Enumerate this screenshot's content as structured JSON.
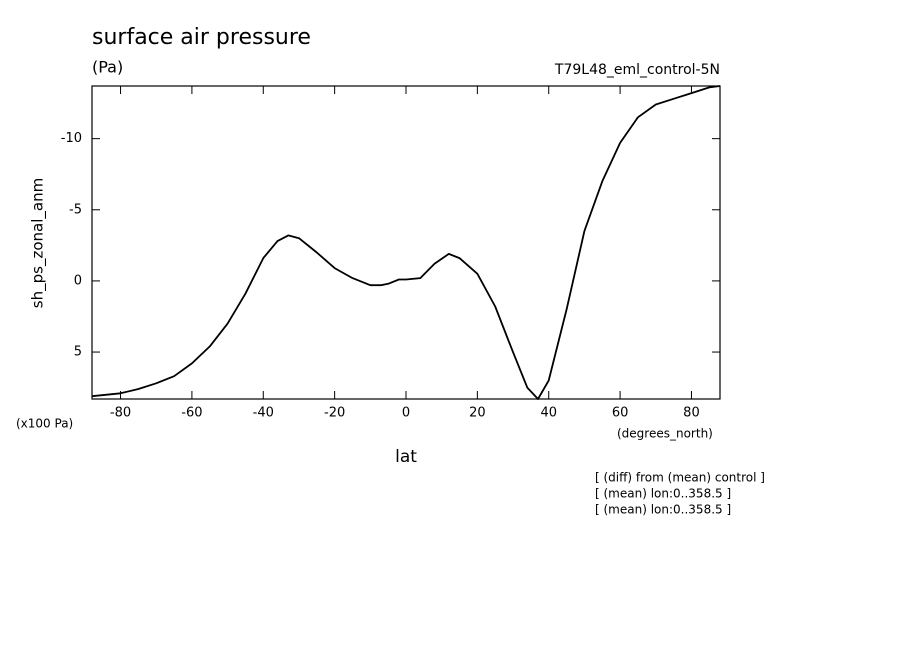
{
  "chart_data": {
    "type": "line",
    "title": "surface air pressure",
    "units": "(Pa)",
    "experiment": "T79L48_eml_control-5N",
    "y_label": "sh_ps_zonal_anm",
    "y_scale_note": "(x100 Pa)",
    "x_label": "lat",
    "x_units": "(degrees_north)",
    "notes": [
      "[ (diff) from (mean) control ]",
      "[ (mean) lon:0..358.5 ]",
      "[ (mean) lon:0..358.5 ]"
    ],
    "xlim": [
      -88,
      88
    ],
    "xticks": [
      -80,
      -60,
      -40,
      -20,
      0,
      20,
      40,
      60,
      80
    ],
    "ylim": [
      8.3,
      -13.7
    ],
    "yticks": [
      -10,
      -5,
      0,
      5
    ],
    "series": [
      {
        "color": "#000000",
        "x": [
          -88,
          -80,
          -75,
          -70,
          -65,
          -60,
          -55,
          -50,
          -45,
          -40,
          -36,
          -33,
          -30,
          -25,
          -20,
          -15,
          -10,
          -7,
          -5,
          -2,
          0,
          4,
          8,
          12,
          15,
          20,
          25,
          30,
          34,
          37,
          40,
          45,
          50,
          55,
          60,
          65,
          70,
          75,
          80,
          85,
          88
        ],
        "values": [
          8.1,
          7.9,
          7.6,
          7.2,
          6.7,
          5.8,
          4.6,
          3.0,
          0.9,
          -1.6,
          -2.8,
          -3.2,
          -3.0,
          -2.0,
          -0.9,
          -0.2,
          0.3,
          0.3,
          0.2,
          -0.1,
          -0.1,
          -0.2,
          -1.2,
          -1.9,
          -1.6,
          -0.5,
          1.8,
          5.0,
          7.5,
          8.3,
          7.0,
          2.0,
          -3.5,
          -7.0,
          -9.7,
          -11.5,
          -12.4,
          -12.8,
          -13.2,
          -13.6,
          -13.7
        ]
      }
    ]
  }
}
